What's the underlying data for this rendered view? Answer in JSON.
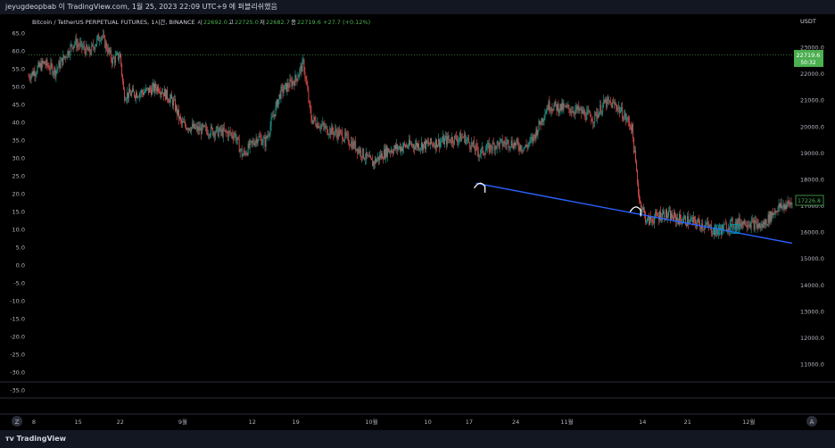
{
  "header": {
    "publish_note": "jeyugdeopbab 이 TradingView.com, 1월 25, 2023 22:09 UTC+9 에 퍼블리쉬했음"
  },
  "legend": {
    "symbol": "Bitcoin / TetherUS PERPETUAL FUTURES, 1시간, BINANCE",
    "open_label": "시",
    "open": "22692.0",
    "high_label": "고",
    "high": "22725.0",
    "low_label": "저",
    "low": "22682.7",
    "close_label": "종",
    "close": "22719.6",
    "change": "+27.7 (+0.12%)"
  },
  "right_axis": {
    "currency": "USDT",
    "price_badge": "22719.6",
    "countdown": "50:32",
    "marker_label": "17226.8"
  },
  "footer": {
    "brand": "TradingView",
    "z_button": "Z",
    "a_button": "A"
  },
  "colors": {
    "up": "#26a69a",
    "up_bright": "#4caf50",
    "down": "#ef5350",
    "trendline": "#2962ff",
    "badge": "#4caf50",
    "marker_box": "#0097a7"
  },
  "chart_data": {
    "type": "candlestick",
    "right_axis_ticks": [
      23000,
      22000,
      21000,
      20000,
      19000,
      18000,
      17000,
      16000,
      15000,
      14000,
      13000,
      12000,
      11000
    ],
    "right_axis_labels": [
      "23000.0",
      "22000.0",
      "21000.0",
      "20000.0",
      "19000.0",
      "18000.0",
      "17000.0",
      "16000.0",
      "15000.0",
      "14000.0",
      "13000.0",
      "12000.0",
      "11000.0"
    ],
    "left_axis_ticks": [
      65,
      60,
      55,
      50,
      45,
      40,
      35,
      30,
      25,
      20,
      15,
      10,
      5,
      0,
      -5,
      -10,
      -15,
      -20,
      -25,
      -30,
      -35
    ],
    "left_axis_labels": [
      "65.0",
      "60.0",
      "55.0",
      "50.0",
      "45.0",
      "40.0",
      "35.0",
      "30.0",
      "25.0",
      "20.0",
      "15.0",
      "10.0",
      "5.0",
      "0.0",
      "-5.0",
      "-10.0",
      "-15.0",
      "-20.0",
      "-25.0",
      "-30.0",
      "-35.0"
    ],
    "x_labels": [
      "8",
      "15",
      "22",
      "9월",
      "12",
      "19",
      "10월",
      "10",
      "17",
      "24",
      "11월",
      "14",
      "21",
      "12월"
    ],
    "x_label_pos": [
      0.0,
      0.058,
      0.113,
      0.195,
      0.286,
      0.343,
      0.442,
      0.516,
      0.57,
      0.631,
      0.698,
      0.797,
      0.856,
      0.936
    ],
    "close_path": [
      [
        0.0,
        21900
      ],
      [
        0.02,
        22400
      ],
      [
        0.035,
        22100
      ],
      [
        0.06,
        23200
      ],
      [
        0.08,
        22800
      ],
      [
        0.095,
        23500
      ],
      [
        0.11,
        22500
      ],
      [
        0.12,
        22700
      ],
      [
        0.125,
        21200
      ],
      [
        0.15,
        21300
      ],
      [
        0.17,
        21500
      ],
      [
        0.19,
        20900
      ],
      [
        0.2,
        20100
      ],
      [
        0.22,
        19900
      ],
      [
        0.25,
        19800
      ],
      [
        0.27,
        19700
      ],
      [
        0.28,
        18900
      ],
      [
        0.3,
        19600
      ],
      [
        0.31,
        19400
      ],
      [
        0.33,
        21300
      ],
      [
        0.35,
        21800
      ],
      [
        0.36,
        22400
      ],
      [
        0.37,
        20300
      ],
      [
        0.39,
        19900
      ],
      [
        0.41,
        19700
      ],
      [
        0.43,
        19200
      ],
      [
        0.45,
        18600
      ],
      [
        0.47,
        19100
      ],
      [
        0.5,
        19300
      ],
      [
        0.52,
        19300
      ],
      [
        0.55,
        19500
      ],
      [
        0.57,
        19600
      ],
      [
        0.59,
        19000
      ],
      [
        0.61,
        19300
      ],
      [
        0.63,
        19400
      ],
      [
        0.65,
        19200
      ],
      [
        0.66,
        19500
      ],
      [
        0.68,
        20800
      ],
      [
        0.7,
        20700
      ],
      [
        0.72,
        20600
      ],
      [
        0.74,
        20300
      ],
      [
        0.755,
        20900
      ],
      [
        0.77,
        20800
      ],
      [
        0.79,
        20000
      ],
      [
        0.8,
        17200
      ],
      [
        0.81,
        16400
      ],
      [
        0.83,
        16700
      ],
      [
        0.85,
        16500
      ],
      [
        0.87,
        16400
      ],
      [
        0.89,
        16200
      ],
      [
        0.9,
        16000
      ],
      [
        0.92,
        16300
      ],
      [
        0.94,
        16400
      ],
      [
        0.96,
        16200
      ],
      [
        0.98,
        16900
      ],
      [
        1.0,
        17100
      ],
      [
        1.03,
        17000
      ],
      [
        1.06,
        17200
      ]
    ],
    "trendline": [
      [
        0.586,
        17850
      ],
      [
        1.0,
        15580
      ]
    ],
    "markers": [
      [
        0.593,
        17800
      ],
      [
        0.797,
        16900
      ]
    ],
    "boxes": [
      [
        0.903,
        16100
      ],
      [
        0.925,
        16120
      ]
    ],
    "current_price": 22719.6
  }
}
